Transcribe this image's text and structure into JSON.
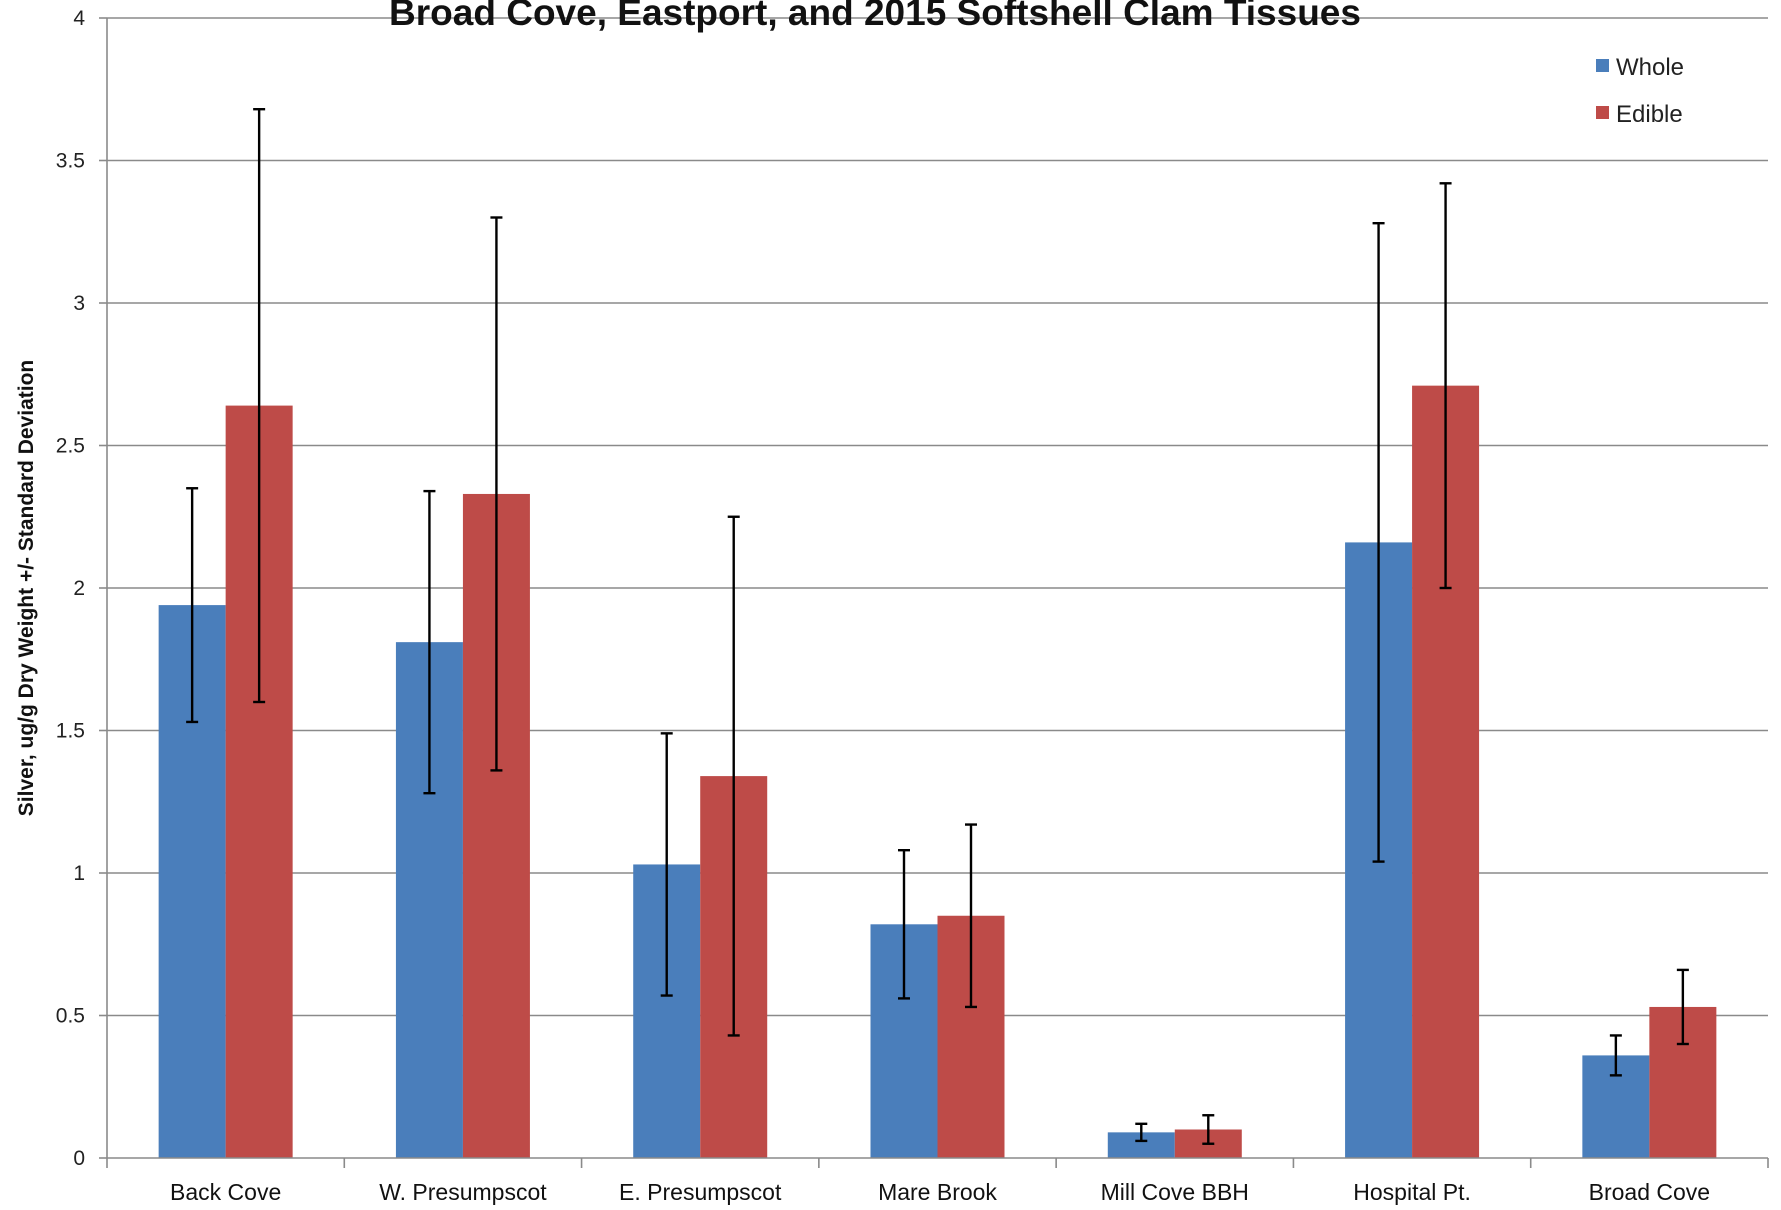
{
  "chart_data": {
    "type": "bar",
    "title": "Broad Cove, Eastport, and 2015 Softshell Clam Tissues",
    "xlabel": "",
    "ylabel": "Silver, ug/g Dry Weight +/- Standard Deviation",
    "ylim": [
      0,
      4
    ],
    "yticks": [
      "0",
      "0.5",
      "1",
      "1.5",
      "2",
      "2.5",
      "3",
      "3.5",
      "4"
    ],
    "grid": true,
    "legend_position": "top-right",
    "categories": [
      "Back Cove",
      "W. Presumpscot",
      "E. Presumpscot",
      "Mare Brook",
      "Mill Cove BBH",
      "Hospital Pt.",
      "Broad Cove"
    ],
    "series": [
      {
        "name": "Whole",
        "color": "#4a7ebb",
        "values": [
          1.94,
          1.81,
          1.03,
          0.82,
          0.09,
          2.16,
          0.36
        ],
        "error": [
          0.41,
          0.53,
          0.46,
          0.26,
          0.03,
          1.12,
          0.07
        ]
      },
      {
        "name": "Edible",
        "color": "#be4b48",
        "values": [
          2.64,
          2.33,
          1.34,
          0.85,
          0.1,
          2.71,
          0.53
        ],
        "error": [
          1.04,
          0.97,
          0.91,
          0.32,
          0.05,
          0.71,
          0.13
        ]
      }
    ]
  }
}
